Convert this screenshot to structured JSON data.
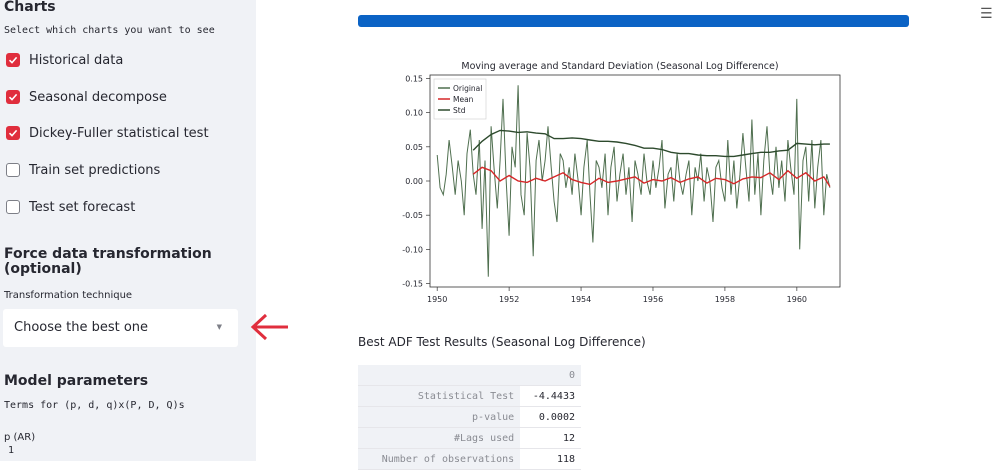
{
  "sidebar": {
    "charts_heading": "Charts",
    "charts_help": "Select which charts you want to see",
    "checkboxes": [
      {
        "label": "Historical data",
        "checked": true
      },
      {
        "label": "Seasonal decompose",
        "checked": true
      },
      {
        "label": "Dickey-Fuller statistical test",
        "checked": true
      },
      {
        "label": "Train set predictions",
        "checked": false
      },
      {
        "label": "Test set forecast",
        "checked": false
      }
    ],
    "force_heading_line1": "Force data transformation",
    "force_heading_line2": "(optional)",
    "transformation_label": "Transformation technique",
    "transformation_value": "Choose the best one",
    "model_heading": "Model parameters",
    "terms_label": "Terms for (p, d, q)x(P, D, Q)s",
    "p_label": "p (AR)",
    "p_value": "1"
  },
  "colors": {
    "accent_red": "#e02e3d",
    "progress_blue": "#0b63c5",
    "original": "#4f6f4f",
    "mean": "#d62728",
    "std": "#2d4a2d"
  },
  "chart_data": {
    "type": "line",
    "title": "Moving average and Standard Deviation (Seasonal Log Difference)",
    "xlabel": "",
    "ylabel": "",
    "xlim": [
      1949.8,
      1961.2
    ],
    "ylim": [
      -0.155,
      0.155
    ],
    "xticks": [
      1950,
      1952,
      1954,
      1956,
      1958,
      1960
    ],
    "yticks": [
      -0.15,
      -0.1,
      -0.05,
      0.0,
      0.05,
      0.1,
      0.15
    ],
    "ytick_labels": [
      "-0.15",
      "-0.10",
      "-0.05",
      "0.00",
      "0.05",
      "0.10",
      "0.15"
    ],
    "legend_position": "top-left",
    "series": [
      {
        "name": "Original",
        "color": "#4f6f4f",
        "x": [
          1950.0,
          1950.08,
          1950.17,
          1950.25,
          1950.33,
          1950.42,
          1950.5,
          1950.58,
          1950.67,
          1950.75,
          1950.83,
          1950.92,
          1951.0,
          1951.08,
          1951.17,
          1951.25,
          1951.33,
          1951.42,
          1951.5,
          1951.58,
          1951.67,
          1951.75,
          1951.83,
          1951.92,
          1952.0,
          1952.08,
          1952.17,
          1952.25,
          1952.33,
          1952.42,
          1952.5,
          1952.58,
          1952.67,
          1952.75,
          1952.83,
          1952.92,
          1953.0,
          1953.08,
          1953.17,
          1953.25,
          1953.33,
          1953.42,
          1953.5,
          1953.58,
          1953.67,
          1953.75,
          1953.83,
          1953.92,
          1954.0,
          1954.08,
          1954.17,
          1954.25,
          1954.33,
          1954.42,
          1954.5,
          1954.58,
          1954.67,
          1954.75,
          1954.83,
          1954.92,
          1955.0,
          1955.08,
          1955.17,
          1955.25,
          1955.33,
          1955.42,
          1955.5,
          1955.58,
          1955.67,
          1955.75,
          1955.83,
          1955.92,
          1956.0,
          1956.08,
          1956.17,
          1956.25,
          1956.33,
          1956.42,
          1956.5,
          1956.58,
          1956.67,
          1956.75,
          1956.83,
          1956.92,
          1957.0,
          1957.08,
          1957.17,
          1957.25,
          1957.33,
          1957.42,
          1957.5,
          1957.58,
          1957.67,
          1957.75,
          1957.83,
          1957.92,
          1958.0,
          1958.08,
          1958.17,
          1958.25,
          1958.33,
          1958.42,
          1958.5,
          1958.58,
          1958.67,
          1958.75,
          1958.83,
          1958.92,
          1959.0,
          1959.08,
          1959.17,
          1959.25,
          1959.33,
          1959.42,
          1959.5,
          1959.58,
          1959.67,
          1959.75,
          1959.83,
          1959.92,
          1960.0,
          1960.08,
          1960.17,
          1960.25,
          1960.33,
          1960.42,
          1960.5,
          1960.58,
          1960.67,
          1960.75,
          1960.83,
          1960.92
        ],
        "values": [
          0.038,
          -0.01,
          -0.02,
          0.01,
          0.06,
          0.02,
          -0.02,
          0.03,
          0.0,
          -0.05,
          0.04,
          0.075,
          0.01,
          -0.02,
          0.06,
          -0.07,
          0.03,
          -0.14,
          0.08,
          0.02,
          -0.04,
          0.03,
          0.12,
          0.0,
          -0.08,
          0.05,
          0.02,
          0.14,
          -0.02,
          -0.05,
          0.07,
          0.02,
          -0.11,
          0.03,
          0.06,
          0.0,
          0.03,
          0.08,
          0.02,
          -0.03,
          -0.06,
          0.04,
          0.03,
          -0.01,
          0.02,
          -0.02,
          0.04,
          0.0,
          -0.05,
          0.02,
          0.06,
          -0.02,
          -0.09,
          0.03,
          0.02,
          -0.01,
          0.04,
          -0.05,
          0.02,
          0.05,
          -0.03,
          0.01,
          0.04,
          -0.02,
          0.02,
          -0.06,
          0.03,
          0.01,
          -0.02,
          0.04,
          0.0,
          -0.02,
          0.03,
          -0.01,
          0.02,
          0.06,
          -0.04,
          0.01,
          0.02,
          -0.03,
          0.04,
          0.0,
          -0.02,
          0.01,
          0.03,
          -0.05,
          0.02,
          0.0,
          0.04,
          -0.03,
          0.02,
          0.0,
          -0.06,
          0.02,
          0.03,
          -0.01,
          -0.03,
          0.06,
          -0.02,
          0.03,
          -0.04,
          0.01,
          0.07,
          0.02,
          -0.03,
          0.09,
          -0.02,
          0.04,
          -0.05,
          0.03,
          0.08,
          0.01,
          -0.02,
          0.05,
          -0.01,
          0.03,
          -0.03,
          0.06,
          0.02,
          -0.02,
          0.12,
          -0.1,
          0.03,
          0.05,
          -0.03,
          0.06,
          -0.04,
          0.02,
          0.06,
          -0.05,
          0.01,
          -0.01
        ]
      },
      {
        "name": "Mean",
        "color": "#d62728",
        "x": [
          1951.0,
          1951.25,
          1951.5,
          1951.75,
          1952.0,
          1952.25,
          1952.5,
          1952.75,
          1953.0,
          1953.25,
          1953.5,
          1953.75,
          1954.0,
          1954.25,
          1954.5,
          1954.75,
          1955.0,
          1955.25,
          1955.5,
          1955.75,
          1956.0,
          1956.25,
          1956.5,
          1956.75,
          1957.0,
          1957.25,
          1957.5,
          1957.75,
          1958.0,
          1958.25,
          1958.5,
          1958.75,
          1959.0,
          1959.25,
          1959.5,
          1959.75,
          1960.0,
          1960.25,
          1960.5,
          1960.75,
          1960.92
        ],
        "values": [
          0.01,
          0.02,
          0.015,
          0.0,
          0.008,
          0.0,
          -0.002,
          0.004,
          0.0,
          0.006,
          0.012,
          0.002,
          -0.002,
          -0.005,
          0.004,
          -0.002,
          0.0,
          0.003,
          0.006,
          -0.003,
          0.002,
          0.0,
          0.005,
          -0.002,
          0.003,
          0.006,
          -0.003,
          0.004,
          0.002,
          -0.004,
          0.003,
          0.006,
          0.005,
          0.012,
          0.002,
          0.015,
          0.004,
          0.012,
          0.0,
          0.006,
          -0.008
        ]
      },
      {
        "name": "Std",
        "color": "#2d4a2d",
        "x": [
          1951.0,
          1951.25,
          1951.5,
          1951.75,
          1952.0,
          1952.25,
          1952.5,
          1952.75,
          1953.0,
          1953.25,
          1953.5,
          1953.75,
          1954.0,
          1954.25,
          1954.5,
          1954.75,
          1955.0,
          1955.25,
          1955.5,
          1955.75,
          1956.0,
          1956.25,
          1956.5,
          1956.75,
          1957.0,
          1957.25,
          1957.5,
          1957.75,
          1958.0,
          1958.25,
          1958.5,
          1958.75,
          1959.0,
          1959.25,
          1959.5,
          1959.75,
          1960.0,
          1960.25,
          1960.5,
          1960.75,
          1960.92
        ],
        "values": [
          0.045,
          0.058,
          0.068,
          0.074,
          0.073,
          0.071,
          0.072,
          0.07,
          0.069,
          0.062,
          0.062,
          0.063,
          0.062,
          0.06,
          0.058,
          0.058,
          0.057,
          0.055,
          0.052,
          0.048,
          0.048,
          0.046,
          0.042,
          0.04,
          0.04,
          0.038,
          0.037,
          0.037,
          0.036,
          0.036,
          0.038,
          0.04,
          0.042,
          0.042,
          0.044,
          0.045,
          0.055,
          0.054,
          0.053,
          0.054,
          0.054
        ]
      }
    ]
  },
  "adf": {
    "title": "Best ADF Test Results (Seasonal Log Difference)",
    "column_header": "0",
    "rows": [
      {
        "label": "Statistical Test",
        "value": "-4.4433"
      },
      {
        "label": "p-value",
        "value": "0.0002"
      },
      {
        "label": "#Lags used",
        "value": "12"
      },
      {
        "label": "Number of observations",
        "value": "118"
      }
    ]
  },
  "icons": {
    "menu": "hamburger-menu-icon",
    "arrow": "red-left-arrow-icon"
  }
}
